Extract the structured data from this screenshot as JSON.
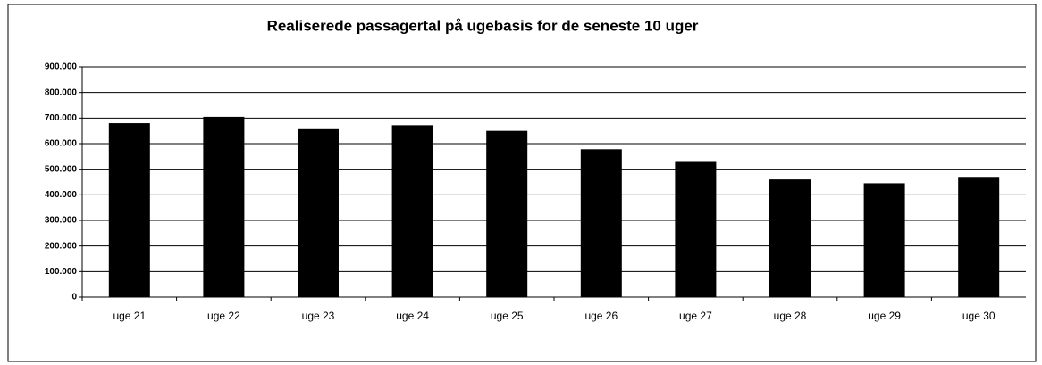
{
  "chart_data": {
    "type": "bar",
    "title": "Realiserede passagertal på ugebasis for de seneste 10 uger",
    "categories": [
      "uge 21",
      "uge 22",
      "uge 23",
      "uge 24",
      "uge 25",
      "uge 26",
      "uge 27",
      "uge 28",
      "uge 29",
      "uge 30"
    ],
    "values": [
      680000,
      705000,
      660000,
      672000,
      650000,
      578000,
      532000,
      460000,
      445000,
      470000
    ],
    "color": "#000000",
    "ylim": [
      0,
      900000
    ],
    "yticks": [
      0,
      {
        "value": 100000,
        "label": "100.000"
      },
      {
        "value": 200000,
        "label": "200.000"
      },
      {
        "value": 300000,
        "label": "300.000"
      },
      {
        "value": 400000,
        "label": "400.000"
      },
      {
        "value": 500000,
        "label": "500.000"
      },
      {
        "value": 600000,
        "label": "600.000"
      },
      {
        "value": 700000,
        "label": "700.000"
      },
      {
        "value": 800000,
        "label": "800.000"
      },
      {
        "value": 900000,
        "label": "900.000"
      }
    ],
    "grid": true
  }
}
